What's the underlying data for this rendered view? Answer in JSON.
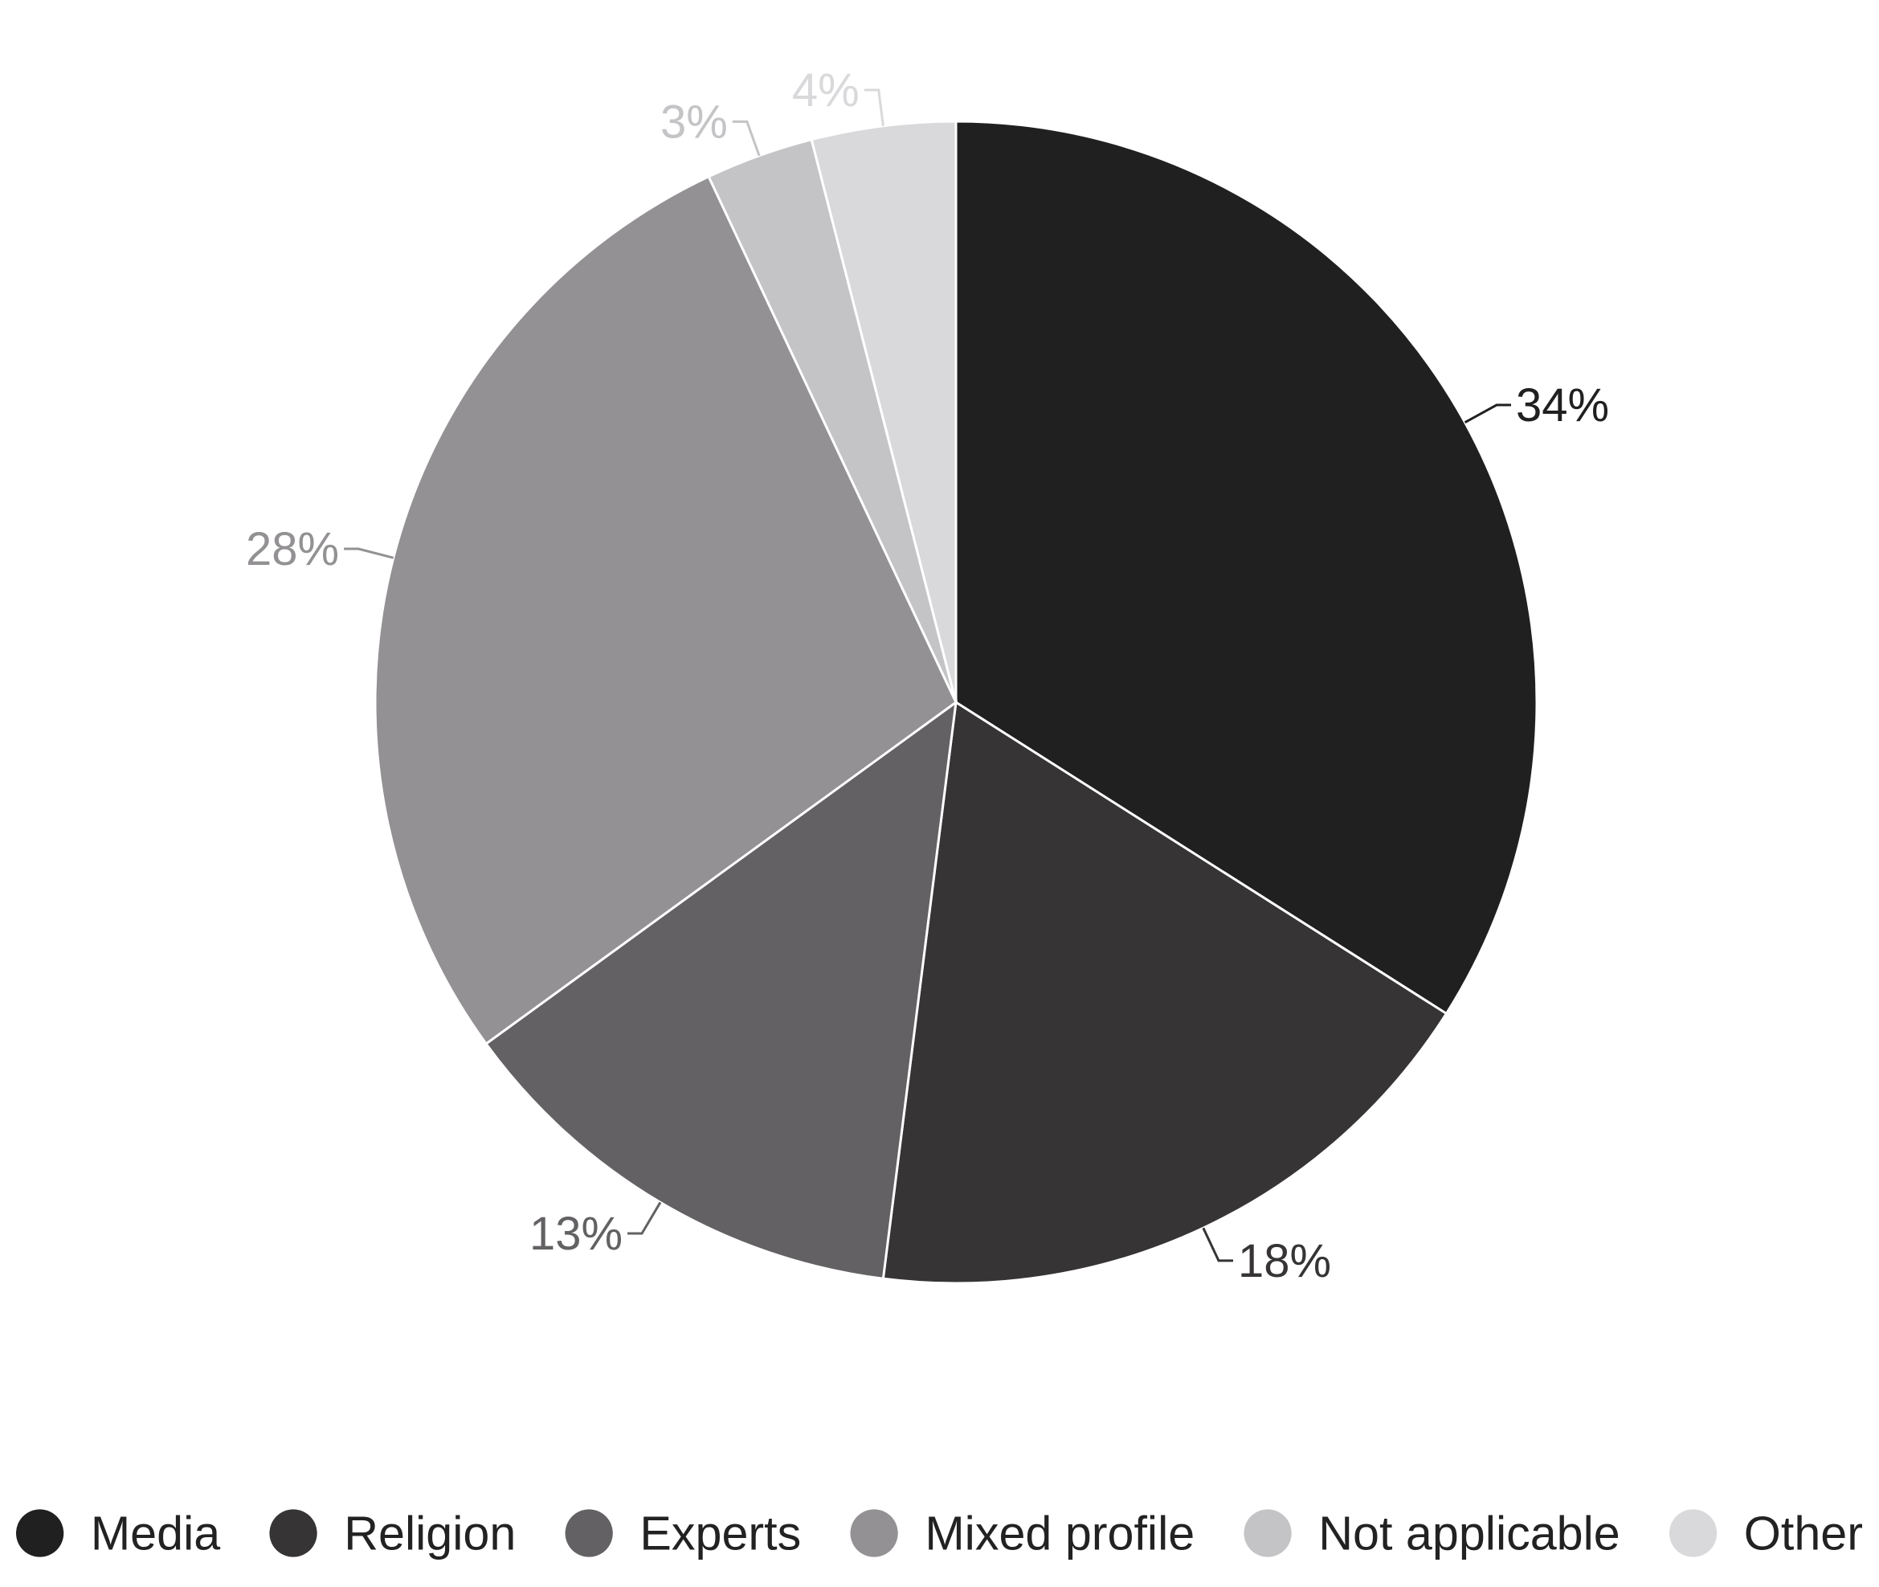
{
  "chart_data": {
    "type": "pie",
    "start_angle_deg": 0,
    "direction": "clockwise",
    "legend_position": "bottom",
    "slices": [
      {
        "name": "Media",
        "value": 34,
        "label": "34%",
        "color": "#202020",
        "label_color": "#202020"
      },
      {
        "name": "Religion",
        "value": 18,
        "label": "18%",
        "color": "#363435",
        "label_color": "#363435"
      },
      {
        "name": "Experts",
        "value": 13,
        "label": "13%",
        "color": "#636163",
        "label_color": "#636163"
      },
      {
        "name": "Mixed profile",
        "value": 28,
        "label": "28%",
        "color": "#939193",
        "label_color": "#939193"
      },
      {
        "name": "Not applicable",
        "value": 3,
        "label": "3%",
        "color": "#c4c3c6",
        "label_color": "#c4c3c6"
      },
      {
        "name": "Other",
        "value": 4,
        "label": "4%",
        "color": "#d9d8db",
        "label_color": "#d9d8db"
      }
    ]
  }
}
